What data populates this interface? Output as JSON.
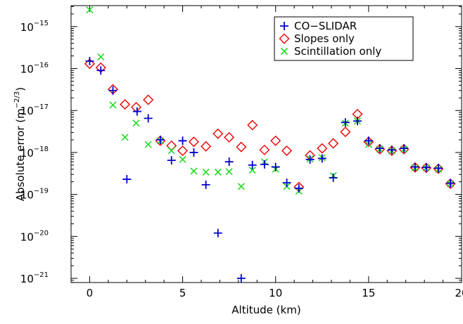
{
  "chart_data": {
    "type": "scatter",
    "xlabel": "Altitude (km)",
    "ylabel": "Absolute error (m",
    "ylabel_exp": "−2/3",
    "ylabel_close": ")",
    "xlim": [
      -1,
      20
    ],
    "ylim_log10": [
      -21.1,
      -14.5
    ],
    "y_scale": "log",
    "x_ticks": [
      0,
      5,
      10,
      15,
      20
    ],
    "x_tick_labels": [
      "0",
      "5",
      "10",
      "15",
      "20"
    ],
    "y_ticks_log10": [
      -21,
      -20,
      -19,
      -18,
      -17,
      -16,
      -15
    ],
    "y_tick_base": "10",
    "y_tick_exponents": [
      "−21",
      "−20",
      "−19",
      "−18",
      "−17",
      "−16",
      "−15"
    ],
    "grid": false,
    "legend_position": "top-right",
    "series": [
      {
        "name": "CO−SLIDAR",
        "marker": "plus",
        "color": "#0000cc",
        "x": [
          0,
          0.6,
          1.25,
          2.0,
          2.55,
          3.15,
          3.8,
          4.4,
          5.0,
          5.6,
          6.25,
          6.9,
          7.5,
          8.15,
          8.75,
          9.4,
          10.0,
          10.6,
          11.25,
          11.85,
          12.5,
          13.1,
          13.75,
          14.4,
          15.0,
          15.6,
          16.25,
          16.9,
          17.5,
          18.1,
          18.75,
          19.4
        ],
        "y": [
          1.5e-16,
          9e-17,
          3e-17,
          2.3e-19,
          9.5e-18,
          6.5e-18,
          2e-18,
          6.5e-19,
          1.9e-18,
          1e-18,
          1.7e-19,
          1.2e-20,
          6e-19,
          1e-21,
          5e-19,
          5.2e-19,
          4.5e-19,
          1.9e-19,
          1.4e-19,
          6.8e-19,
          7.2e-19,
          2.5e-19,
          5.2e-18,
          5.6e-18,
          1.9e-18,
          1.25e-18,
          1.15e-18,
          1.25e-18,
          4.5e-19,
          4.4e-19,
          4.2e-19,
          1.85e-19
        ]
      },
      {
        "name": "Slopes only",
        "marker": "diamond",
        "color": "#ee0000",
        "x": [
          0,
          0.6,
          1.25,
          1.9,
          2.5,
          3.15,
          3.8,
          4.4,
          5.0,
          5.6,
          6.25,
          6.9,
          7.5,
          8.15,
          8.75,
          9.4,
          10.0,
          10.6,
          11.25,
          11.85,
          12.5,
          13.1,
          13.75,
          14.4,
          15.0,
          15.6,
          16.25,
          16.9,
          17.5,
          18.1,
          18.75,
          19.4
        ],
        "y": [
          1.3e-16,
          1.05e-16,
          3.2e-17,
          1.4e-17,
          1.2e-17,
          1.8e-17,
          1.9e-18,
          1.45e-18,
          1.1e-18,
          1.8e-18,
          1.4e-18,
          2.8e-18,
          2.3e-18,
          1.35e-18,
          4.5e-18,
          1.15e-18,
          1.9e-18,
          1.1e-18,
          1.5e-19,
          8.5e-19,
          1.25e-18,
          1.65e-18,
          3.1e-18,
          8.2e-18,
          1.8e-18,
          1.2e-18,
          1.1e-18,
          1.2e-18,
          4.4e-19,
          4.3e-19,
          4.1e-19,
          1.8e-19
        ]
      },
      {
        "name": "Scintillation only",
        "marker": "cross",
        "color": "#22dd22",
        "x": [
          0,
          0.6,
          1.25,
          1.9,
          2.5,
          3.15,
          3.8,
          4.4,
          5.0,
          5.6,
          6.25,
          6.9,
          7.5,
          8.15,
          8.75,
          9.4,
          10.0,
          10.6,
          11.25,
          11.85,
          12.5,
          13.1,
          13.75,
          14.4,
          15.0,
          15.6,
          16.25,
          16.9,
          17.5,
          18.1,
          18.75,
          19.4
        ],
        "y": [
          2.5e-15,
          1.9e-16,
          1.35e-17,
          2.3e-18,
          5e-18,
          1.55e-18,
          1.9e-18,
          1.1e-18,
          6.8e-19,
          3.6e-19,
          3.4e-19,
          3.4e-19,
          3.5e-19,
          1.55e-19,
          3.8e-19,
          6e-19,
          4e-19,
          1.55e-19,
          1.2e-19,
          7e-19,
          7.5e-19,
          2.8e-19,
          5e-18,
          5.6e-18,
          1.55e-18,
          1.2e-18,
          1.1e-18,
          1.2e-18,
          4.3e-19,
          4.3e-19,
          4e-19,
          1.8e-19
        ]
      }
    ]
  }
}
